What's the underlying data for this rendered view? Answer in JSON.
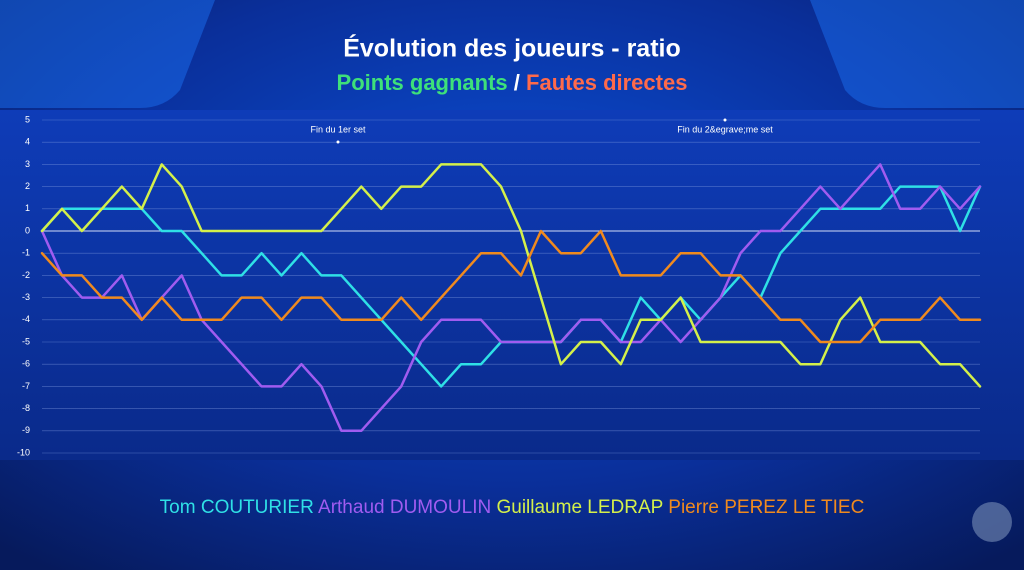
{
  "chart_data": {
    "type": "line",
    "title": "Évolution des joueurs - ratio",
    "subtitle": [
      {
        "text": "Points gagnants",
        "color": "#3ee07a"
      },
      {
        "text": "/",
        "color": "#ffffff"
      },
      {
        "text": "Fautes directes",
        "color": "#ff6a4a"
      }
    ],
    "annotations": [
      "Fin du 1er set",
      "Fin du 2&egrave;me set"
    ],
    "ylim": [
      -10,
      5
    ],
    "yticks": [
      5,
      4,
      3,
      2,
      1,
      0,
      -1,
      -2,
      -3,
      -4,
      -5,
      -6,
      -7,
      -8,
      -9,
      -10
    ],
    "grid": true,
    "series": [
      {
        "name": "Tom COUTURIER",
        "color": "#2fe0e6",
        "values": [
          0,
          1,
          1,
          1,
          1,
          1,
          0,
          0,
          -1,
          -2,
          -2,
          -1,
          -2,
          -1,
          -2,
          -2,
          -3,
          -4,
          -5,
          -6,
          -7,
          -6,
          -6,
          -5,
          -5,
          -5,
          -5,
          -4,
          -4,
          -5,
          -3,
          -4,
          -3,
          -4,
          -3,
          -2,
          -3,
          -1,
          0,
          1,
          1,
          1,
          1,
          2,
          2,
          2,
          0,
          2
        ]
      },
      {
        "name": "Arthaud DUMOULIN",
        "color": "#a05cf0",
        "values": [
          0,
          -2,
          -3,
          -3,
          -2,
          -4,
          -3,
          -2,
          -4,
          -5,
          -6,
          -7,
          -7,
          -6,
          -7,
          -9,
          -9,
          -8,
          -7,
          -5,
          -4,
          -4,
          -4,
          -5,
          -5,
          -5,
          -5,
          -4,
          -4,
          -5,
          -5,
          -4,
          -5,
          -4,
          -3,
          -1,
          0,
          0,
          1,
          2,
          1,
          2,
          3,
          1,
          1,
          2,
          1,
          2
        ]
      },
      {
        "name": "Guillaume LEDRAP",
        "color": "#d4f04a",
        "values": [
          0,
          1,
          0,
          1,
          2,
          1,
          3,
          2,
          0,
          0,
          0,
          0,
          0,
          0,
          0,
          1,
          2,
          1,
          2,
          2,
          3,
          3,
          3,
          2,
          0,
          -3,
          -6,
          -5,
          -5,
          -6,
          -4,
          -4,
          -3,
          -5,
          -5,
          -5,
          -5,
          -5,
          -6,
          -6,
          -4,
          -3,
          -5,
          -5,
          -5,
          -6,
          -6,
          -7
        ]
      },
      {
        "name": "Pierre PEREZ LE TIEC",
        "color": "#f08a1e",
        "values": [
          -1,
          -2,
          -2,
          -3,
          -3,
          -4,
          -3,
          -4,
          -4,
          -4,
          -3,
          -3,
          -4,
          -3,
          -3,
          -4,
          -4,
          -4,
          -3,
          -4,
          -3,
          -2,
          -1,
          -1,
          -2,
          0,
          -1,
          -1,
          0,
          -2,
          -2,
          -2,
          -1,
          -1,
          -2,
          -2,
          -3,
          -4,
          -4,
          -5,
          -5,
          -5,
          -4,
          -4,
          -4,
          -3,
          -4,
          -4
        ]
      }
    ]
  }
}
